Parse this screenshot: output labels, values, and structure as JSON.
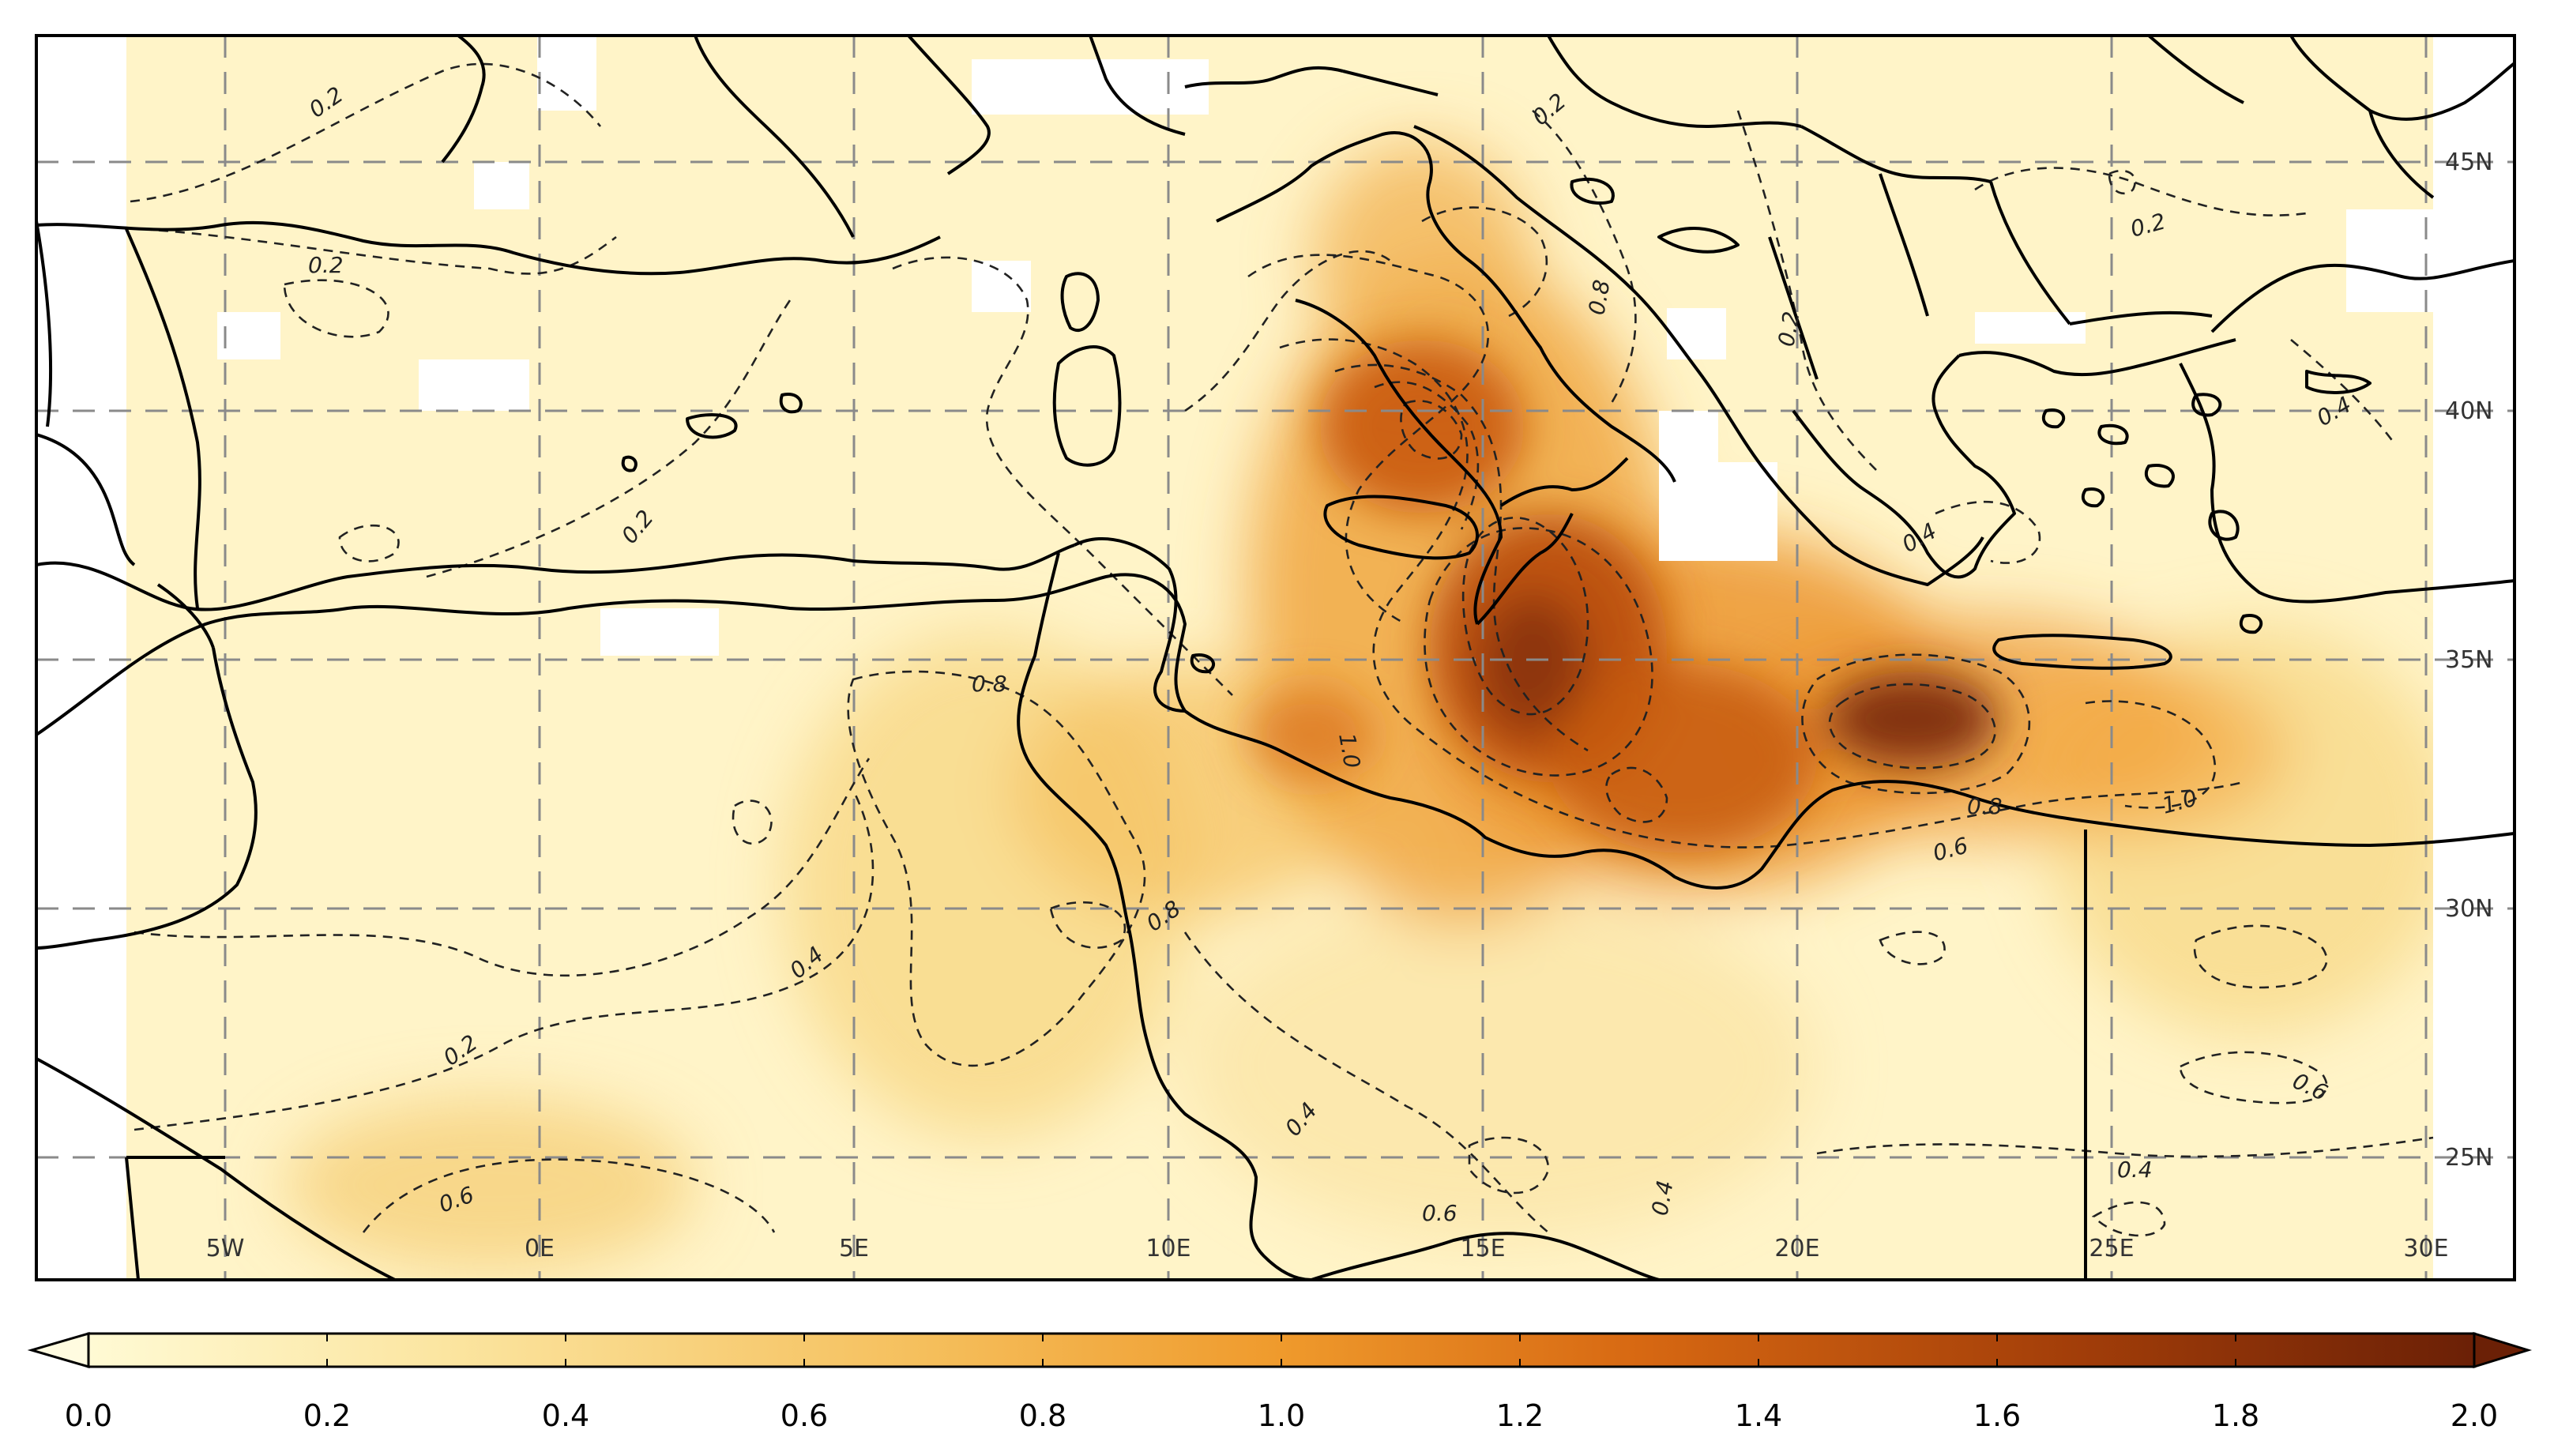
{
  "map": {
    "lon_labels": [
      "5W",
      "0E",
      "5E",
      "10E",
      "15E",
      "20E",
      "25E",
      "30E"
    ],
    "lat_labels": [
      "45N",
      "40N",
      "35N",
      "30N",
      "25N"
    ],
    "contour_labels": [
      "0.2",
      "0.2",
      "0.2",
      "0.2",
      "0.4",
      "0.6",
      "0.8",
      "0.8",
      "0.8",
      "1.0",
      "1.0",
      "0.8",
      "0.6",
      "0.6",
      "0.4",
      "0.6",
      "0.4",
      "0.4",
      "0.4",
      "0.2",
      "0.2",
      "0.2",
      "0.4"
    ]
  },
  "colorbar": {
    "min": 0.0,
    "max": 2.0,
    "tick_labels": [
      "0.0",
      "0.2",
      "0.4",
      "0.6",
      "0.8",
      "1.0",
      "1.2",
      "1.4",
      "1.6",
      "1.8",
      "2.0"
    ],
    "colors": {
      "low": "#fffad4",
      "q1": "#fbe5a0",
      "q2": "#f5bf5c",
      "mid": "#ef9a2c",
      "q3": "#d76812",
      "q4": "#a33e09",
      "high": "#6b2006",
      "under": "#fffbe0",
      "over": "#6b2006"
    }
  },
  "colors": {
    "coastline": "#000000",
    "grid": "#8a8a8a",
    "contour": "#222222",
    "missing": "#ffffff"
  }
}
